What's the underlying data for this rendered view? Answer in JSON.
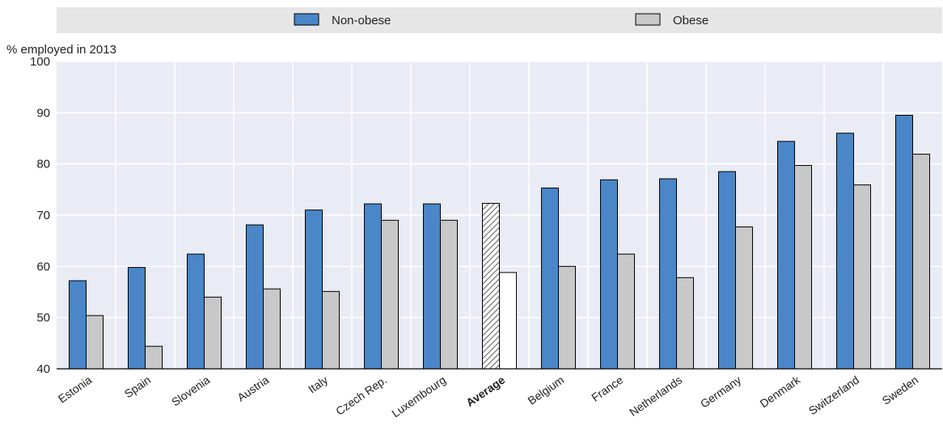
{
  "chart_data": {
    "type": "bar",
    "ylabel": "% employed in 2013",
    "ylim": [
      40,
      100
    ],
    "yticks": [
      40,
      50,
      60,
      70,
      80,
      90,
      100
    ],
    "grid": true,
    "legend_position": "top",
    "highlight_category": "Average",
    "categories": [
      "Estonia",
      "Spain",
      "Slovenia",
      "Austria",
      "Italy",
      "Czech Rep.",
      "Luxembourg",
      "Average",
      "Belgium",
      "France",
      "Netherlands",
      "Germany",
      "Denmark",
      "Switzerland",
      "Sweden"
    ],
    "series": [
      {
        "name": "Non-obese",
        "color": "#4a86c8",
        "values": [
          57.2,
          59.8,
          62.4,
          68.1,
          71.0,
          72.2,
          72.2,
          72.3,
          75.3,
          76.9,
          77.1,
          78.5,
          84.4,
          86.0,
          89.5
        ]
      },
      {
        "name": "Obese",
        "color": "#c8c8c8",
        "values": [
          50.4,
          44.4,
          54.0,
          55.6,
          55.1,
          69.0,
          69.0,
          58.8,
          60.0,
          62.4,
          57.8,
          67.7,
          79.7,
          75.9,
          81.9
        ]
      }
    ]
  }
}
